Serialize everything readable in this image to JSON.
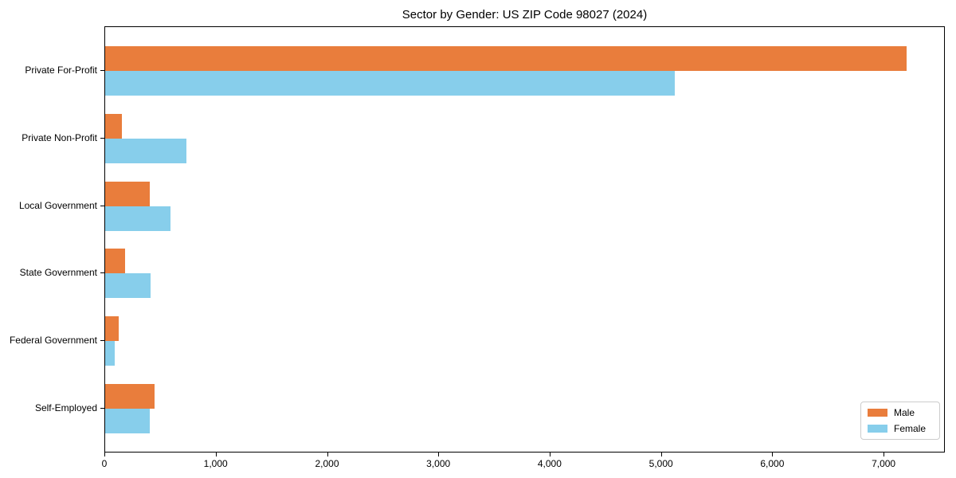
{
  "chart_data": {
    "type": "bar",
    "orientation": "horizontal",
    "title": "Sector by Gender: US ZIP Code 98027 (2024)",
    "categories": [
      "Private For-Profit",
      "Private Non-Profit",
      "Local Government",
      "State Government",
      "Federal Government",
      "Self-Employed"
    ],
    "series": [
      {
        "name": "Male",
        "color": "#E97D3C",
        "values": [
          7200,
          150,
          400,
          180,
          120,
          440
        ]
      },
      {
        "name": "Female",
        "color": "#87CEEB",
        "values": [
          5120,
          730,
          590,
          410,
          85,
          400
        ]
      }
    ],
    "xlabel": "",
    "ylabel": "",
    "xlim": [
      0,
      7550
    ],
    "x_ticks": [
      0,
      1000,
      2000,
      3000,
      4000,
      5000,
      6000,
      7000
    ],
    "x_tick_labels": [
      "0",
      "1,000",
      "2,000",
      "3,000",
      "4,000",
      "5,000",
      "6,000",
      "7,000"
    ],
    "grid": false,
    "legend_position": "lower right"
  },
  "legend": {
    "items": [
      {
        "label": "Male",
        "color": "#E97D3C"
      },
      {
        "label": "Female",
        "color": "#87CEEB"
      }
    ]
  }
}
